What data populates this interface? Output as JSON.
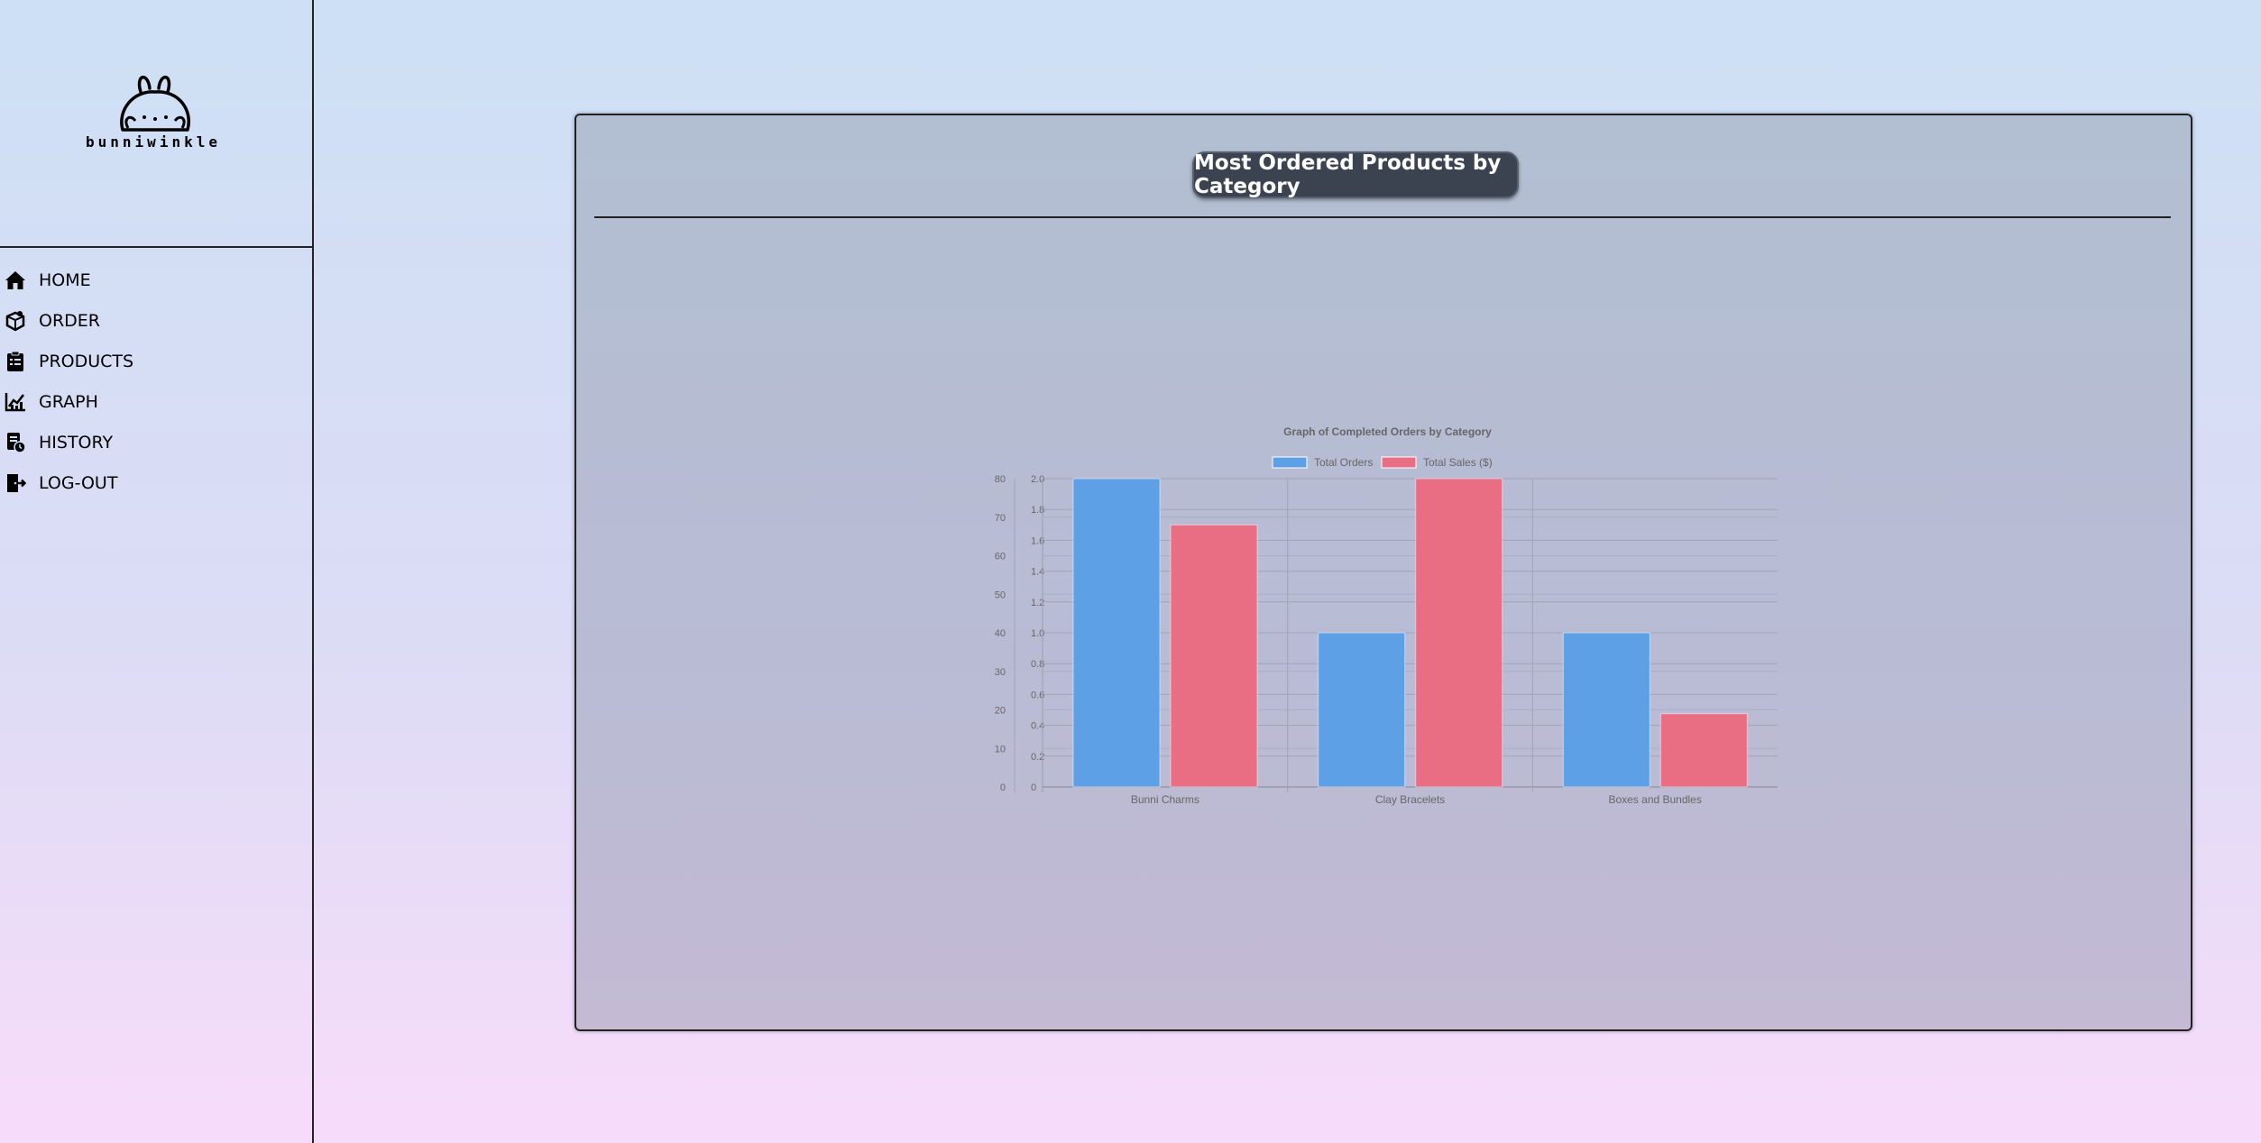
{
  "brand": {
    "name": "bunniwinkle"
  },
  "nav": {
    "items": [
      {
        "label": "HOME",
        "icon": "house-icon"
      },
      {
        "label": "ORDER",
        "icon": "box-icon"
      },
      {
        "label": "PRODUCTS",
        "icon": "clipboard-list-icon"
      },
      {
        "label": "GRAPH",
        "icon": "chart-line-icon"
      },
      {
        "label": "HISTORY",
        "icon": "history-icon"
      },
      {
        "label": "LOG-OUT",
        "icon": "logout-icon"
      }
    ]
  },
  "panel": {
    "title": "Most Ordered Products by Category"
  },
  "chart_data": {
    "type": "bar",
    "title": "Graph of Completed Orders by Category",
    "categories": [
      "Bunni Charms",
      "Clay Bracelets",
      "Boxes and Bundles"
    ],
    "series": [
      {
        "name": "Total Orders",
        "values": [
          2,
          1,
          1
        ],
        "color": "#5ea0e6",
        "axis": "right"
      },
      {
        "name": "Total Sales ($)",
        "values": [
          68,
          80,
          19
        ],
        "color": "#e96e84",
        "axis": "left"
      }
    ],
    "y_left": {
      "ticks": [
        "0",
        "10",
        "20",
        "30",
        "40",
        "50",
        "60",
        "70",
        "80"
      ],
      "ylim": [
        0,
        80
      ]
    },
    "y_right": {
      "ticks": [
        "0",
        "0.2",
        "0.4",
        "0.6",
        "0.8",
        "1.0",
        "1.2",
        "1.4",
        "1.6",
        "1.8",
        "2.0"
      ],
      "ylim": [
        0,
        2
      ]
    },
    "legend": "top-center",
    "grid": true,
    "text_color": "#666666",
    "grid_color": "#9ea6b7"
  }
}
